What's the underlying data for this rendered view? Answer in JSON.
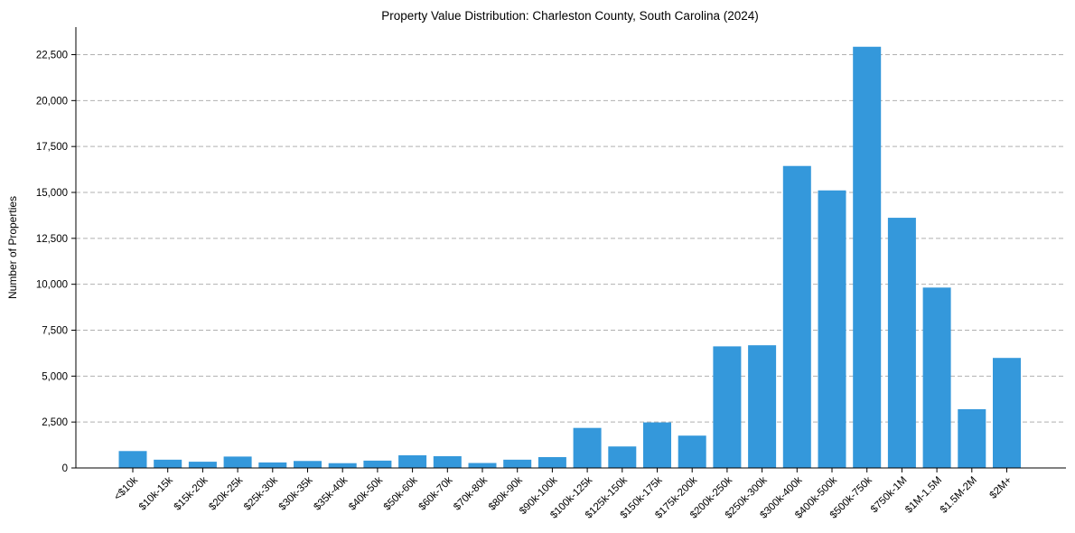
{
  "chart_data": {
    "type": "bar",
    "title": "Property Value Distribution: Charleston County, South Carolina (2024)",
    "xlabel": "",
    "ylabel": "Number of Properties",
    "categories": [
      "<$10k",
      "$10k-15k",
      "$15k-20k",
      "$20k-25k",
      "$25k-30k",
      "$30k-35k",
      "$35k-40k",
      "$40k-50k",
      "$50k-60k",
      "$60k-70k",
      "$70k-80k",
      "$80k-90k",
      "$90k-100k",
      "$100k-125k",
      "$125k-150k",
      "$150k-175k",
      "$175k-200k",
      "$200k-250k",
      "$250k-300k",
      "$300k-400k",
      "$400k-500k",
      "$500k-750k",
      "$750k-1M",
      "$1M-1.5M",
      "$1.5M-2M",
      "$2M+"
    ],
    "values": [
      920,
      450,
      340,
      620,
      300,
      380,
      260,
      400,
      690,
      640,
      270,
      450,
      590,
      2180,
      1170,
      2480,
      1760,
      6620,
      6680,
      16440,
      15110,
      22930,
      13620,
      9820,
      3200,
      5990
    ],
    "ylim": [
      0,
      24000
    ],
    "yticks": [
      0,
      2500,
      5000,
      7500,
      10000,
      12500,
      15000,
      17500,
      20000,
      22500
    ],
    "ytick_labels": [
      "0",
      "2,500",
      "5,000",
      "7,500",
      "10,000",
      "12,500",
      "15,000",
      "17,500",
      "20,000",
      "22,500"
    ],
    "grid": "y-dashed",
    "colors": {
      "bar": "#3498db"
    }
  }
}
